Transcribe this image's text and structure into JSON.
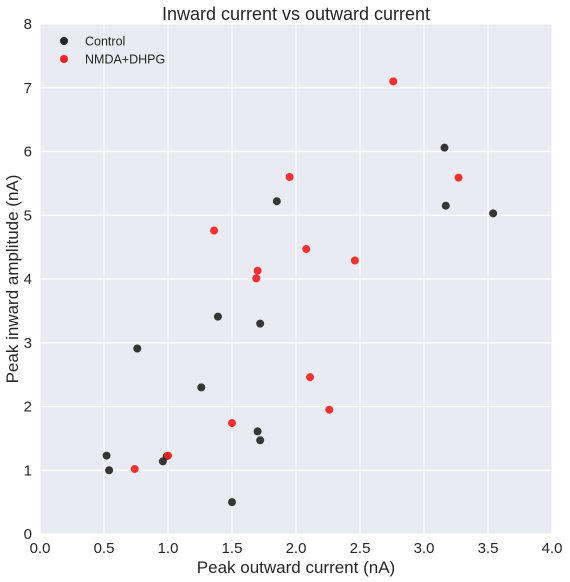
{
  "chart_data": {
    "type": "scatter",
    "title": "Inward current vs outward current",
    "xlabel": "Peak outward current (nA)",
    "ylabel": "Peak inward amplitude (nA)",
    "xlim": [
      0,
      4
    ],
    "ylim": [
      0,
      8
    ],
    "xticks": [
      0,
      0.5,
      1,
      1.5,
      2,
      2.5,
      3,
      3.5,
      4
    ],
    "xtick_labels": [
      "0.0",
      "0.5",
      "1.0",
      "1.5",
      "2.0",
      "2.5",
      "3.0",
      "3.5",
      "4.0"
    ],
    "yticks": [
      0,
      1,
      2,
      3,
      4,
      5,
      6,
      7,
      8
    ],
    "ytick_labels": [
      "0",
      "1",
      "2",
      "3",
      "4",
      "5",
      "6",
      "7",
      "8"
    ],
    "grid": true,
    "legend_position": "top-left",
    "colors": {
      "plot_background": "#eaeaf2",
      "grid": "#ffffff",
      "text": "#262626"
    },
    "series": [
      {
        "name": "Control",
        "color": "#262626",
        "points": [
          {
            "x": 0.52,
            "y": 1.23
          },
          {
            "x": 0.54,
            "y": 1.0
          },
          {
            "x": 0.76,
            "y": 2.91
          },
          {
            "x": 0.96,
            "y": 1.14
          },
          {
            "x": 0.99,
            "y": 1.22
          },
          {
            "x": 1.26,
            "y": 2.3
          },
          {
            "x": 1.39,
            "y": 3.41
          },
          {
            "x": 1.5,
            "y": 0.5
          },
          {
            "x": 1.7,
            "y": 1.61
          },
          {
            "x": 1.72,
            "y": 1.47
          },
          {
            "x": 1.72,
            "y": 3.3
          },
          {
            "x": 1.85,
            "y": 5.22
          },
          {
            "x": 3.16,
            "y": 6.06
          },
          {
            "x": 3.17,
            "y": 5.15
          },
          {
            "x": 3.54,
            "y": 5.03
          }
        ]
      },
      {
        "name": "NMDA+DHPG",
        "color": "#ee2222",
        "points": [
          {
            "x": 0.74,
            "y": 1.02
          },
          {
            "x": 1.0,
            "y": 1.23
          },
          {
            "x": 1.36,
            "y": 4.76
          },
          {
            "x": 1.5,
            "y": 1.74
          },
          {
            "x": 1.69,
            "y": 4.01
          },
          {
            "x": 1.7,
            "y": 4.13
          },
          {
            "x": 1.95,
            "y": 5.6
          },
          {
            "x": 2.08,
            "y": 4.47
          },
          {
            "x": 2.11,
            "y": 2.46
          },
          {
            "x": 2.26,
            "y": 1.95
          },
          {
            "x": 2.46,
            "y": 4.29
          },
          {
            "x": 2.76,
            "y": 7.1
          },
          {
            "x": 3.27,
            "y": 5.59
          }
        ]
      }
    ]
  }
}
